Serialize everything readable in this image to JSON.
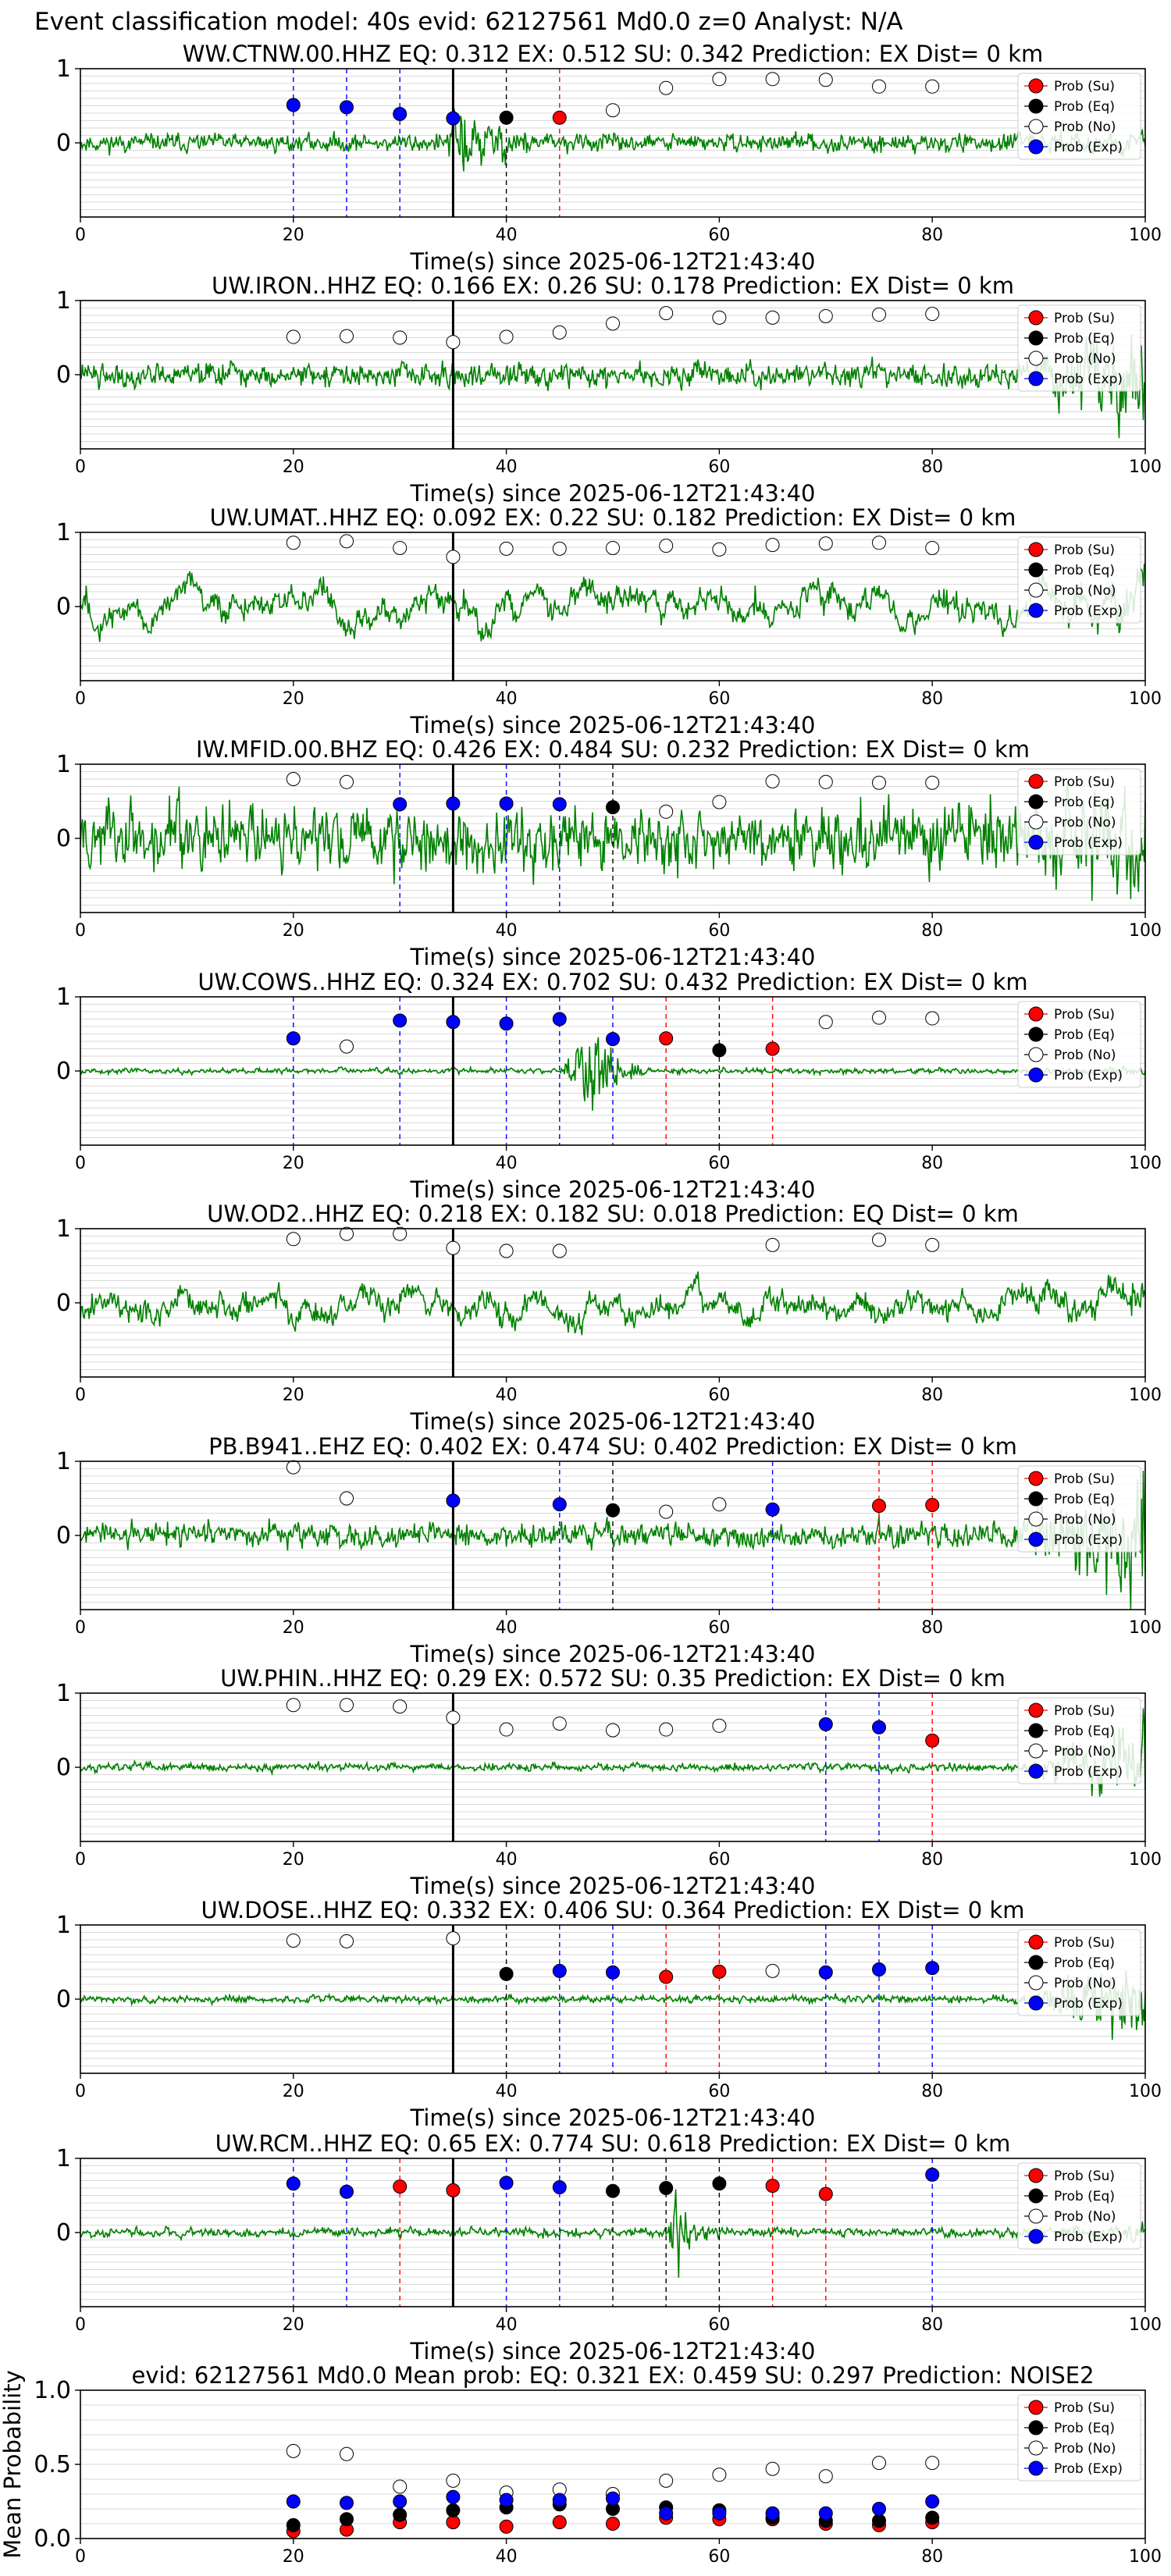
{
  "figure_title": "Event classification model: 40s evid: 62127561 Md0.0 z=0 Analyst: N/A",
  "legend_labels": [
    "Prob (Su)",
    "Prob (Eq)",
    "Prob (No)",
    "Prob (Exp)"
  ],
  "colors": {
    "waveform": "#008000",
    "su": "#ff0000",
    "eq": "#000000",
    "no": "#ffffff",
    "exp": "#0000ff",
    "pick_line": "#000000",
    "grid": "#d8d8d8"
  },
  "chart_data": [
    {
      "type": "line",
      "title": "WW.CTNW.00.HHZ   EQ: 0.312  EX: 0.512  SU: 0.342   Prediction: EX    Dist= 0 km",
      "xlabel": "Time(s) since 2025-06-12T21:43:40",
      "ylabel": "",
      "xlim": [
        0,
        100
      ],
      "ylim": [
        -1,
        1
      ],
      "xticks": [
        0,
        20,
        40,
        60,
        80,
        100
      ],
      "yticks": [
        0,
        1
      ],
      "grid": true,
      "legend": "upper right",
      "pick_time": 35,
      "waveform": {
        "seed": 11,
        "amplitude": 0.16,
        "style": "event",
        "event_start": 34,
        "event_peak": 35.5,
        "event_end": 43,
        "event_amp": 0.95,
        "tail_amp": 0.02
      },
      "windows": [
        {
          "t": 20,
          "pred": "exp",
          "p": 0.51
        },
        {
          "t": 25,
          "pred": "exp",
          "p": 0.48
        },
        {
          "t": 30,
          "pred": "exp",
          "p": 0.39
        },
        {
          "t": 35,
          "pred": "exp",
          "p": 0.33
        },
        {
          "t": 40,
          "pred": "eq",
          "p": 0.34
        },
        {
          "t": 45,
          "pred": "su",
          "p": 0.34
        },
        {
          "t": 50,
          "pred": "no",
          "p": 0.44
        },
        {
          "t": 55,
          "pred": "no",
          "p": 0.74
        },
        {
          "t": 60,
          "pred": "no",
          "p": 0.86
        },
        {
          "t": 65,
          "pred": "no",
          "p": 0.86
        },
        {
          "t": 70,
          "pred": "no",
          "p": 0.85
        },
        {
          "t": 75,
          "pred": "no",
          "p": 0.76
        },
        {
          "t": 80,
          "pred": "no",
          "p": 0.76
        }
      ]
    },
    {
      "type": "line",
      "title": "UW.IRON..HHZ   EQ: 0.166  EX: 0.26  SU: 0.178   Prediction: EX    Dist= 0 km",
      "xlabel": "Time(s) since 2025-06-12T21:43:40",
      "ylabel": "",
      "xlim": [
        0,
        100
      ],
      "ylim": [
        -1,
        1
      ],
      "xticks": [
        0,
        20,
        40,
        60,
        80,
        100
      ],
      "yticks": [
        0,
        1
      ],
      "grid": true,
      "legend": "upper right",
      "pick_time": 35,
      "waveform": {
        "seed": 22,
        "amplitude": 0.22,
        "style": "noise",
        "tail_amp": 0.45
      },
      "windows": [
        {
          "t": 20,
          "pred": "no",
          "p": 0.51
        },
        {
          "t": 25,
          "pred": "no",
          "p": 0.52
        },
        {
          "t": 30,
          "pred": "no",
          "p": 0.5
        },
        {
          "t": 35,
          "pred": "no",
          "p": 0.44
        },
        {
          "t": 40,
          "pred": "no",
          "p": 0.51
        },
        {
          "t": 45,
          "pred": "no",
          "p": 0.57
        },
        {
          "t": 50,
          "pred": "no",
          "p": 0.69
        },
        {
          "t": 55,
          "pred": "no",
          "p": 0.83
        },
        {
          "t": 60,
          "pred": "no",
          "p": 0.77
        },
        {
          "t": 65,
          "pred": "no",
          "p": 0.77
        },
        {
          "t": 70,
          "pred": "no",
          "p": 0.79
        },
        {
          "t": 75,
          "pred": "no",
          "p": 0.81
        },
        {
          "t": 80,
          "pred": "no",
          "p": 0.82
        }
      ]
    },
    {
      "type": "line",
      "title": "UW.UMAT..HHZ   EQ: 0.092  EX: 0.22  SU: 0.182   Prediction: EX    Dist= 0 km",
      "xlabel": "Time(s) since 2025-06-12T21:43:40",
      "ylabel": "",
      "xlim": [
        0,
        100
      ],
      "ylim": [
        -1,
        1
      ],
      "xticks": [
        0,
        20,
        40,
        60,
        80,
        100
      ],
      "yticks": [
        0,
        1
      ],
      "grid": true,
      "legend": "upper right",
      "pick_time": 35,
      "waveform": {
        "seed": 33,
        "amplitude": 0.55,
        "style": "lowfreq",
        "tail_amp": 0.2
      },
      "windows": [
        {
          "t": 20,
          "pred": "no",
          "p": 0.86
        },
        {
          "t": 25,
          "pred": "no",
          "p": 0.88
        },
        {
          "t": 30,
          "pred": "no",
          "p": 0.79
        },
        {
          "t": 35,
          "pred": "no",
          "p": 0.67
        },
        {
          "t": 40,
          "pred": "no",
          "p": 0.78
        },
        {
          "t": 45,
          "pred": "no",
          "p": 0.78
        },
        {
          "t": 50,
          "pred": "no",
          "p": 0.79
        },
        {
          "t": 55,
          "pred": "no",
          "p": 0.82
        },
        {
          "t": 60,
          "pred": "no",
          "p": 0.77
        },
        {
          "t": 65,
          "pred": "no",
          "p": 0.83
        },
        {
          "t": 70,
          "pred": "no",
          "p": 0.85
        },
        {
          "t": 75,
          "pred": "no",
          "p": 0.86
        },
        {
          "t": 80,
          "pred": "no",
          "p": 0.79
        }
      ]
    },
    {
      "type": "line",
      "title": "IW.MFID.00.BHZ   EQ: 0.426  EX: 0.484  SU: 0.232   Prediction: EX    Dist= 0 km",
      "xlabel": "Time(s) since 2025-06-12T21:43:40",
      "ylabel": "",
      "xlim": [
        0,
        100
      ],
      "ylim": [
        -1,
        1
      ],
      "xticks": [
        0,
        20,
        40,
        60,
        80,
        100
      ],
      "yticks": [
        0,
        1
      ],
      "grid": true,
      "legend": "upper right",
      "pick_time": 35,
      "waveform": {
        "seed": 44,
        "amplitude": 0.6,
        "style": "noise",
        "tail_amp": 0.3
      },
      "windows": [
        {
          "t": 20,
          "pred": "no",
          "p": 0.8
        },
        {
          "t": 25,
          "pred": "no",
          "p": 0.76
        },
        {
          "t": 30,
          "pred": "exp",
          "p": 0.46
        },
        {
          "t": 35,
          "pred": "exp",
          "p": 0.47
        },
        {
          "t": 40,
          "pred": "exp",
          "p": 0.47
        },
        {
          "t": 45,
          "pred": "exp",
          "p": 0.46
        },
        {
          "t": 50,
          "pred": "eq",
          "p": 0.42
        },
        {
          "t": 55,
          "pred": "no",
          "p": 0.36
        },
        {
          "t": 60,
          "pred": "no",
          "p": 0.49
        },
        {
          "t": 65,
          "pred": "no",
          "p": 0.77
        },
        {
          "t": 70,
          "pred": "no",
          "p": 0.76
        },
        {
          "t": 75,
          "pred": "no",
          "p": 0.75
        },
        {
          "t": 80,
          "pred": "no",
          "p": 0.75
        }
      ]
    },
    {
      "type": "line",
      "title": "UW.COWS..HHZ   EQ: 0.324  EX: 0.702  SU: 0.432   Prediction: EX    Dist= 0 km",
      "xlabel": "Time(s) since 2025-06-12T21:43:40",
      "ylabel": "",
      "xlim": [
        0,
        100
      ],
      "ylim": [
        -1,
        1
      ],
      "xticks": [
        0,
        20,
        40,
        60,
        80,
        100
      ],
      "yticks": [
        0,
        1
      ],
      "grid": true,
      "legend": "upper right",
      "pick_time": 35,
      "waveform": {
        "seed": 55,
        "amplitude": 0.05,
        "style": "event",
        "event_start": 45,
        "event_peak": 48,
        "event_end": 53,
        "event_amp": 0.95,
        "tail_amp": 0.02
      },
      "windows": [
        {
          "t": 20,
          "pred": "exp",
          "p": 0.44
        },
        {
          "t": 25,
          "pred": "no",
          "p": 0.33
        },
        {
          "t": 30,
          "pred": "exp",
          "p": 0.68
        },
        {
          "t": 35,
          "pred": "exp",
          "p": 0.66
        },
        {
          "t": 40,
          "pred": "exp",
          "p": 0.64
        },
        {
          "t": 45,
          "pred": "exp",
          "p": 0.7
        },
        {
          "t": 50,
          "pred": "exp",
          "p": 0.43
        },
        {
          "t": 55,
          "pred": "su",
          "p": 0.44
        },
        {
          "t": 60,
          "pred": "eq",
          "p": 0.28
        },
        {
          "t": 65,
          "pred": "su",
          "p": 0.3
        },
        {
          "t": 70,
          "pred": "no",
          "p": 0.66
        },
        {
          "t": 75,
          "pred": "no",
          "p": 0.72
        },
        {
          "t": 80,
          "pred": "no",
          "p": 0.71
        }
      ]
    },
    {
      "type": "line",
      "title": "UW.OD2..HHZ   EQ: 0.218  EX: 0.182  SU: 0.018   Prediction: EQ    Dist= 0 km",
      "xlabel": "Time(s) since 2025-06-12T21:43:40",
      "ylabel": "",
      "xlim": [
        0,
        100
      ],
      "ylim": [
        -1,
        1
      ],
      "xticks": [
        0,
        20,
        40,
        60,
        80,
        100
      ],
      "yticks": [
        0,
        1
      ],
      "grid": true,
      "legend": "none",
      "pick_time": 35,
      "waveform": {
        "seed": 66,
        "amplitude": 0.5,
        "style": "lowfreq",
        "tail_amp": 0.2
      },
      "windows": [
        {
          "t": 20,
          "pred": "no",
          "p": 0.86
        },
        {
          "t": 25,
          "pred": "no",
          "p": 0.93
        },
        {
          "t": 30,
          "pred": "no",
          "p": 0.93
        },
        {
          "t": 35,
          "pred": "no",
          "p": 0.74
        },
        {
          "t": 40,
          "pred": "no",
          "p": 0.7
        },
        {
          "t": 45,
          "pred": "no",
          "p": 0.7
        },
        {
          "t": 65,
          "pred": "no",
          "p": 0.78
        },
        {
          "t": 75,
          "pred": "no",
          "p": 0.85
        },
        {
          "t": 80,
          "pred": "no",
          "p": 0.78
        }
      ]
    },
    {
      "type": "line",
      "title": "PB.B941..EHZ   EQ: 0.402  EX: 0.474  SU: 0.402   Prediction: EX    Dist= 0 km",
      "xlabel": "Time(s) since 2025-06-12T21:43:40",
      "ylabel": "",
      "xlim": [
        0,
        100
      ],
      "ylim": [
        -1,
        1
      ],
      "xticks": [
        0,
        20,
        40,
        60,
        80,
        100
      ],
      "yticks": [
        0,
        1
      ],
      "grid": true,
      "legend": "upper right",
      "pick_time": 35,
      "waveform": {
        "seed": 77,
        "amplitude": 0.22,
        "style": "noise",
        "tail_amp": 0.65
      },
      "windows": [
        {
          "t": 20,
          "pred": "no",
          "p": 0.92
        },
        {
          "t": 25,
          "pred": "no",
          "p": 0.5
        },
        {
          "t": 35,
          "pred": "exp",
          "p": 0.47
        },
        {
          "t": 45,
          "pred": "exp",
          "p": 0.42
        },
        {
          "t": 50,
          "pred": "eq",
          "p": 0.34
        },
        {
          "t": 55,
          "pred": "no",
          "p": 0.32
        },
        {
          "t": 60,
          "pred": "no",
          "p": 0.42
        },
        {
          "t": 65,
          "pred": "exp",
          "p": 0.35
        },
        {
          "t": 75,
          "pred": "su",
          "p": 0.4
        },
        {
          "t": 80,
          "pred": "su",
          "p": 0.41
        }
      ]
    },
    {
      "type": "line",
      "title": "UW.PHIN..HHZ   EQ: 0.29  EX: 0.572  SU: 0.35   Prediction: EX    Dist= 0 km",
      "xlabel": "Time(s) since 2025-06-12T21:43:40",
      "ylabel": "",
      "xlim": [
        0,
        100
      ],
      "ylim": [
        -1,
        1
      ],
      "xticks": [
        0,
        20,
        40,
        60,
        80,
        100
      ],
      "yticks": [
        0,
        1
      ],
      "grid": true,
      "legend": "upper right",
      "pick_time": 35,
      "waveform": {
        "seed": 88,
        "amplitude": 0.07,
        "style": "noise",
        "tail_amp": 0.35
      },
      "windows": [
        {
          "t": 20,
          "pred": "no",
          "p": 0.84
        },
        {
          "t": 25,
          "pred": "no",
          "p": 0.84
        },
        {
          "t": 30,
          "pred": "no",
          "p": 0.82
        },
        {
          "t": 35,
          "pred": "no",
          "p": 0.67
        },
        {
          "t": 40,
          "pred": "no",
          "p": 0.51
        },
        {
          "t": 45,
          "pred": "no",
          "p": 0.59
        },
        {
          "t": 50,
          "pred": "no",
          "p": 0.5
        },
        {
          "t": 55,
          "pred": "no",
          "p": 0.51
        },
        {
          "t": 60,
          "pred": "no",
          "p": 0.56
        },
        {
          "t": 70,
          "pred": "exp",
          "p": 0.58
        },
        {
          "t": 75,
          "pred": "exp",
          "p": 0.54
        },
        {
          "t": 80,
          "pred": "su",
          "p": 0.36
        }
      ]
    },
    {
      "type": "line",
      "title": "UW.DOSE..HHZ   EQ: 0.332  EX: 0.406  SU: 0.364   Prediction: EX    Dist= 0 km",
      "xlabel": "Time(s) since 2025-06-12T21:43:40",
      "ylabel": "",
      "xlim": [
        0,
        100
      ],
      "ylim": [
        -1,
        1
      ],
      "xticks": [
        0,
        20,
        40,
        60,
        80,
        100
      ],
      "yticks": [
        0,
        1
      ],
      "grid": true,
      "legend": "upper right",
      "pick_time": 35,
      "waveform": {
        "seed": 99,
        "amplitude": 0.07,
        "style": "noise",
        "tail_amp": 0.4
      },
      "windows": [
        {
          "t": 20,
          "pred": "no",
          "p": 0.79
        },
        {
          "t": 25,
          "pred": "no",
          "p": 0.78
        },
        {
          "t": 35,
          "pred": "no",
          "p": 0.82
        },
        {
          "t": 40,
          "pred": "eq",
          "p": 0.34
        },
        {
          "t": 45,
          "pred": "exp",
          "p": 0.38
        },
        {
          "t": 50,
          "pred": "exp",
          "p": 0.36
        },
        {
          "t": 55,
          "pred": "su",
          "p": 0.3
        },
        {
          "t": 60,
          "pred": "su",
          "p": 0.37
        },
        {
          "t": 65,
          "pred": "no",
          "p": 0.38
        },
        {
          "t": 70,
          "pred": "exp",
          "p": 0.36
        },
        {
          "t": 75,
          "pred": "exp",
          "p": 0.4
        },
        {
          "t": 80,
          "pred": "exp",
          "p": 0.42
        }
      ]
    },
    {
      "type": "line",
      "title": "UW.RCM..HHZ   EQ: 0.65  EX: 0.774  SU: 0.618   Prediction: EX    Dist= 0 km",
      "xlabel": "Time(s) since 2025-06-12T21:43:40",
      "ylabel": "",
      "xlim": [
        0,
        100
      ],
      "ylim": [
        -1,
        1
      ],
      "xticks": [
        0,
        20,
        40,
        60,
        80,
        100
      ],
      "yticks": [
        0,
        1
      ],
      "grid": true,
      "legend": "upper right",
      "pick_time": 35,
      "waveform": {
        "seed": 121,
        "amplitude": 0.08,
        "style": "event",
        "event_start": 55,
        "event_peak": 56,
        "event_end": 60,
        "event_amp": 0.9,
        "tail_amp": 0.05
      },
      "windows": [
        {
          "t": 20,
          "pred": "exp",
          "p": 0.66
        },
        {
          "t": 25,
          "pred": "exp",
          "p": 0.55
        },
        {
          "t": 30,
          "pred": "su",
          "p": 0.62
        },
        {
          "t": 35,
          "pred": "su",
          "p": 0.57
        },
        {
          "t": 40,
          "pred": "exp",
          "p": 0.67
        },
        {
          "t": 45,
          "pred": "exp",
          "p": 0.61
        },
        {
          "t": 50,
          "pred": "eq",
          "p": 0.56
        },
        {
          "t": 55,
          "pred": "eq",
          "p": 0.6
        },
        {
          "t": 60,
          "pred": "eq",
          "p": 0.66
        },
        {
          "t": 65,
          "pred": "su",
          "p": 0.63
        },
        {
          "t": 70,
          "pred": "su",
          "p": 0.52
        },
        {
          "t": 80,
          "pred": "exp",
          "p": 0.78
        }
      ]
    },
    {
      "type": "scatter",
      "title": "evid: 62127561  Md0.0   Mean prob:   EQ: 0.321  EX: 0.459  SU: 0.297   Prediction: NOISE2",
      "xlabel": "",
      "ylabel": "Mean Probability",
      "xlim": [
        0,
        100
      ],
      "ylim": [
        0,
        1
      ],
      "xticks": [
        0,
        20,
        40,
        60,
        80,
        100
      ],
      "yticks": [
        0.0,
        0.5,
        1.0
      ],
      "ytick_labels": [
        "0.0",
        "0.5",
        "1.0"
      ],
      "grid": true,
      "legend": "upper right",
      "x": [
        20,
        25,
        30,
        35,
        40,
        45,
        50,
        55,
        60,
        65,
        70,
        75,
        80
      ],
      "series": [
        {
          "name": "Prob (Su)",
          "key": "su",
          "values": [
            0.05,
            0.06,
            0.11,
            0.11,
            0.08,
            0.11,
            0.1,
            0.14,
            0.13,
            0.13,
            0.1,
            0.09,
            0.11
          ]
        },
        {
          "name": "Prob (Eq)",
          "key": "eq",
          "values": [
            0.09,
            0.13,
            0.16,
            0.19,
            0.21,
            0.23,
            0.2,
            0.21,
            0.19,
            0.14,
            0.12,
            0.12,
            0.14
          ]
        },
        {
          "name": "Prob (No)",
          "key": "no",
          "values": [
            0.59,
            0.57,
            0.35,
            0.39,
            0.31,
            0.33,
            0.3,
            0.39,
            0.43,
            0.47,
            0.42,
            0.51,
            0.51
          ]
        },
        {
          "name": "Prob (Exp)",
          "key": "exp",
          "values": [
            0.25,
            0.24,
            0.25,
            0.28,
            0.26,
            0.26,
            0.27,
            0.17,
            0.17,
            0.17,
            0.17,
            0.2,
            0.25
          ]
        }
      ]
    }
  ]
}
